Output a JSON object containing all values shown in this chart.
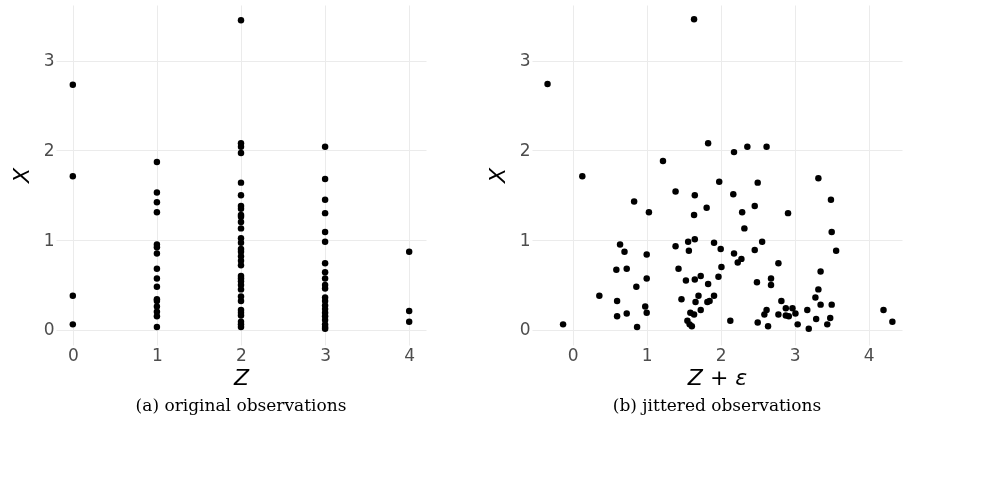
{
  "chart_data": [
    {
      "type": "scatter",
      "xlabel": "Z",
      "ylabel": "X",
      "annotations": [
        "(a) original observations"
      ],
      "color": "#000000",
      "grid": true,
      "marker": "circle",
      "x": [
        0,
        0,
        0,
        0,
        1,
        1,
        1,
        1,
        1,
        1,
        1,
        1,
        1,
        1,
        1,
        1,
        1,
        1,
        1,
        1,
        2,
        2,
        2,
        2,
        2,
        2,
        2,
        2,
        2,
        2,
        2,
        2,
        2,
        2,
        2,
        2,
        2,
        2,
        2,
        2,
        2,
        2,
        2,
        2,
        2,
        2,
        2,
        2,
        2,
        2,
        2,
        2,
        3,
        3,
        3,
        3,
        3,
        3,
        3,
        3,
        3,
        3,
        3,
        3,
        3,
        3,
        3,
        3,
        3,
        3,
        3,
        3,
        3,
        4,
        4,
        4
      ],
      "values": [
        2.73,
        1.71,
        0.38,
        0.06,
        1.87,
        1.53,
        1.42,
        1.31,
        0.95,
        0.92,
        0.85,
        0.68,
        0.57,
        0.48,
        0.34,
        0.32,
        0.26,
        0.2,
        0.15,
        0.03,
        3.45,
        2.08,
        2.04,
        1.97,
        1.64,
        1.5,
        1.38,
        1.35,
        1.28,
        1.13,
        1.02,
        0.97,
        0.9,
        0.87,
        0.82,
        0.77,
        0.72,
        0.6,
        0.57,
        0.54,
        0.5,
        0.37,
        0.32,
        0.22,
        0.19,
        0.16,
        0.09,
        0.06,
        0.03,
        1.26,
        1.2,
        0.45,
        2.04,
        1.68,
        1.45,
        1.3,
        1.09,
        0.98,
        0.74,
        0.64,
        0.57,
        0.5,
        0.46,
        0.36,
        0.32,
        0.27,
        0.23,
        0.19,
        0.15,
        0.11,
        0.06,
        0.03,
        0.01,
        0.87,
        0.21,
        0.09
      ],
      "xlim": [
        -0.2,
        4.2
      ],
      "ylim": [
        -0.17,
        3.62
      ],
      "xticks": [
        0,
        1,
        2,
        3,
        4
      ],
      "yticks": [
        0,
        1,
        2,
        3
      ]
    },
    {
      "type": "scatter",
      "xlabel": "Z + ε",
      "ylabel": "X",
      "annotations": [
        "(b) jittered observations"
      ],
      "color": "#000000",
      "grid": true,
      "marker": "circle",
      "x": [
        -0.34,
        1.64,
        0.13,
        1.83,
        2.18,
        2.36,
        2.62,
        1.22,
        1.98,
        2.5,
        3.32,
        3.49,
        0.83,
        1.39,
        1.65,
        2.17,
        1.81,
        2.46,
        1.03,
        2.29,
        2.91,
        1.64,
        2.32,
        3.5,
        3.56,
        0.64,
        0.7,
        1.0,
        1.39,
        1.56,
        1.65,
        1.57,
        1.91,
        2.0,
        2.18,
        2.23,
        2.28,
        2.46,
        2.56,
        2.78,
        3.35,
        0.59,
        0.73,
        1.43,
        2.01,
        1.0,
        1.53,
        1.65,
        1.73,
        1.97,
        1.83,
        2.49,
        2.68,
        2.68,
        0.86,
        0.36,
        0.6,
        1.47,
        1.7,
        1.66,
        1.82,
        1.85,
        1.91,
        2.82,
        3.28,
        3.32,
        3.35,
        3.5,
        0.6,
        0.73,
        0.98,
        1.0,
        1.59,
        1.64,
        1.73,
        1.55,
        1.58,
        1.61,
        0.87,
        -0.13,
        2.13,
        2.5,
        2.62,
        2.59,
        2.64,
        2.78,
        2.88,
        2.97,
        3.01,
        2.88,
        2.92,
        3.04,
        3.17,
        3.19,
        3.29,
        3.44,
        3.48,
        4.2,
        4.32
      ],
      "values": [
        2.74,
        3.46,
        1.71,
        2.08,
        1.98,
        2.04,
        2.04,
        1.88,
        1.65,
        1.64,
        1.69,
        1.45,
        1.43,
        1.54,
        1.5,
        1.51,
        1.36,
        1.38,
        1.31,
        1.31,
        1.3,
        1.28,
        1.13,
        1.09,
        0.88,
        0.95,
        0.87,
        0.84,
        0.93,
        0.98,
        1.01,
        0.88,
        0.97,
        0.9,
        0.85,
        0.75,
        0.79,
        0.89,
        0.98,
        0.74,
        0.65,
        0.67,
        0.68,
        0.68,
        0.7,
        0.57,
        0.55,
        0.56,
        0.6,
        0.59,
        0.51,
        0.53,
        0.57,
        0.5,
        0.48,
        0.38,
        0.32,
        0.34,
        0.38,
        0.31,
        0.31,
        0.32,
        0.38,
        0.32,
        0.36,
        0.45,
        0.28,
        0.28,
        0.15,
        0.18,
        0.26,
        0.19,
        0.19,
        0.17,
        0.22,
        0.1,
        0.06,
        0.04,
        0.03,
        0.06,
        0.1,
        0.08,
        0.22,
        0.17,
        0.04,
        0.17,
        0.24,
        0.24,
        0.18,
        0.16,
        0.15,
        0.06,
        0.22,
        0.01,
        0.12,
        0.06,
        0.13,
        0.22,
        0.09
      ],
      "xlim": [
        -0.55,
        4.45
      ],
      "ylim": [
        -0.17,
        3.62
      ],
      "xticks": [
        0,
        1,
        2,
        3,
        4
      ],
      "yticks": [
        0,
        1,
        2,
        3
      ]
    }
  ]
}
